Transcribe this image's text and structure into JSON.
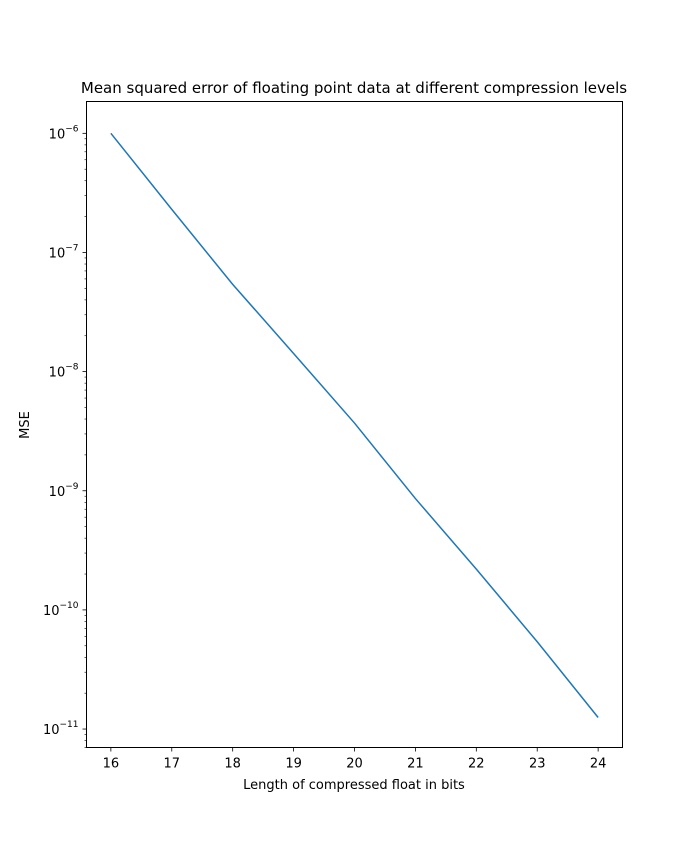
{
  "chart_data": {
    "type": "line",
    "title": "Mean squared error of floating point data at different compression levels",
    "xlabel": "Length of compressed float in bits",
    "ylabel": "MSE",
    "yscale": "log",
    "grid": false,
    "xlim": [
      15.6,
      24.4
    ],
    "ylim": [
      7e-12,
      1.85e-06
    ],
    "x_ticks": [
      16,
      17,
      18,
      19,
      20,
      21,
      22,
      23,
      24
    ],
    "x_tick_labels": [
      "16",
      "17",
      "18",
      "19",
      "20",
      "21",
      "22",
      "23",
      "24"
    ],
    "y_ticks": [
      {
        "value": 1e-06,
        "base": "10",
        "exp": "−6"
      },
      {
        "value": 1e-07,
        "base": "10",
        "exp": "−7"
      },
      {
        "value": 1e-08,
        "base": "10",
        "exp": "−8"
      },
      {
        "value": 1e-09,
        "base": "10",
        "exp": "−9"
      },
      {
        "value": 1e-10,
        "base": "10",
        "exp": "−10"
      },
      {
        "value": 1e-11,
        "base": "10",
        "exp": "−11"
      }
    ],
    "series": [
      {
        "color": "#1f77b4",
        "x": [
          16,
          17,
          18,
          19,
          20,
          21,
          22,
          23,
          24
        ],
        "y": [
          1e-06,
          2.3e-07,
          5.4e-08,
          1.42e-08,
          3.7e-09,
          8.6e-10,
          2.2e-10,
          5.4e-11,
          1.25e-11
        ]
      }
    ]
  }
}
